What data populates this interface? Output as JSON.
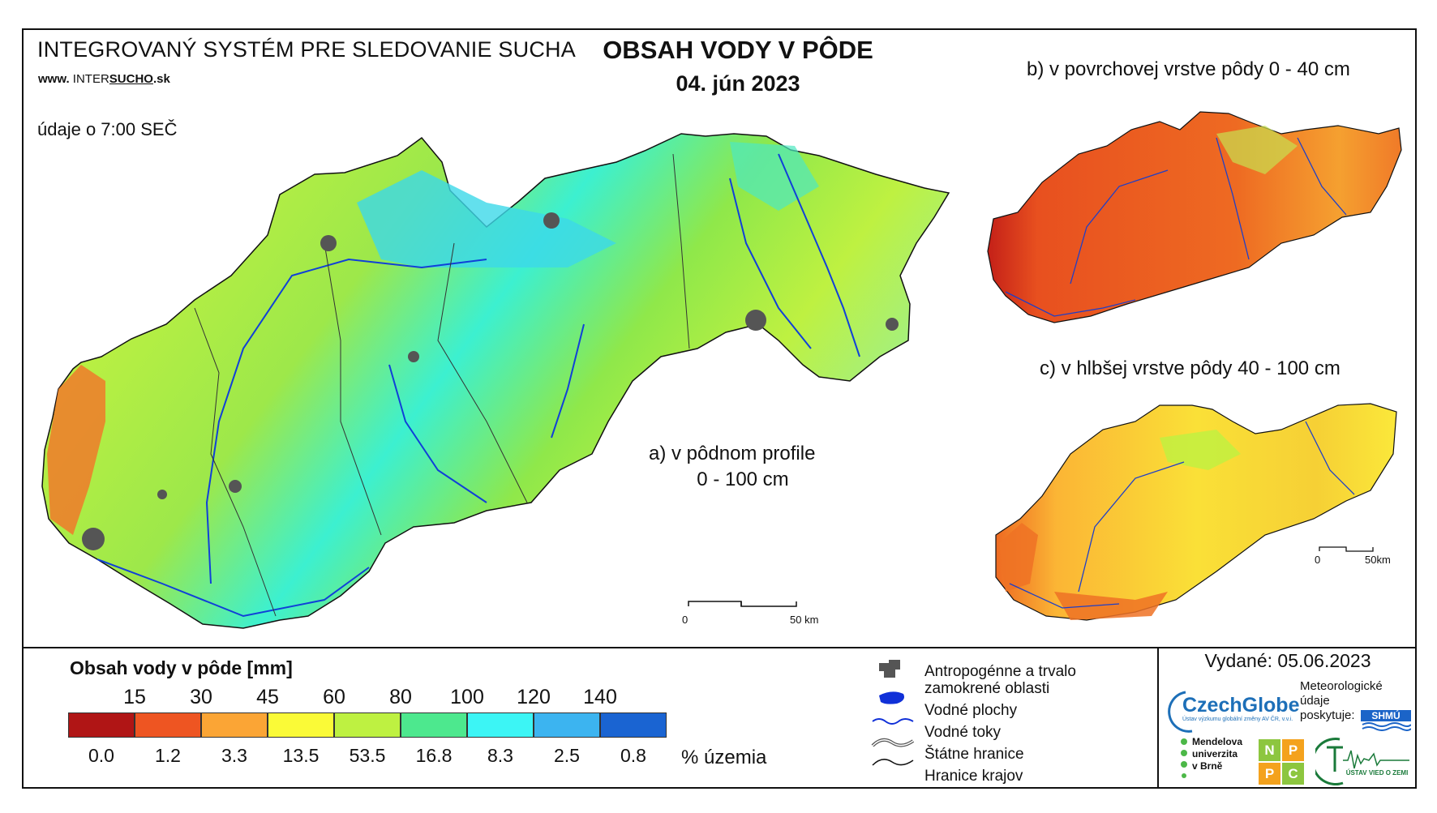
{
  "header": {
    "system_title": "INTEGROVANÝ SYSTÉM PRE SLEDOVANIE SUCHA",
    "www_prefix": "www.",
    "www_inter": "INTER",
    "www_sucho": "SUCHO",
    "www_suffix": ".sk",
    "data_time": "údaje o 7:00 SEČ",
    "title": "OBSAH VODY V PÔDE",
    "date": "04. jún 2023"
  },
  "maps": {
    "a_label_line1": "a) v pôdnom profile",
    "a_label_line2": "0 - 100 cm",
    "b_label": "b) v povrchovej vrstve pôdy 0 - 40 cm",
    "c_label": "c) v hlbšej vrstve pôdy 40 - 100 cm",
    "scale_a": {
      "zero": "0",
      "end": "50 km"
    },
    "scale_c": {
      "zero": "0",
      "end": "50km"
    }
  },
  "legend": {
    "title": "Obsah vody v pôde  [mm]",
    "thresholds": [
      "15",
      "30",
      "45",
      "60",
      "80",
      "100",
      "120",
      "140"
    ],
    "colors": [
      "#b01515",
      "#ee5522",
      "#fba535",
      "#fafa37",
      "#bef141",
      "#4de88e",
      "#3cf5f5",
      "#3cb4f0",
      "#1a64d2"
    ],
    "percent_area": [
      "0.0",
      "1.2",
      "3.3",
      "13.5",
      "53.5",
      "16.8",
      "8.3",
      "2.5",
      "0.8"
    ],
    "percent_unit": "% územia",
    "symbols": {
      "anthropogenic_line1": "Antropogénne a trvalo",
      "anthropogenic_line2": "zamokrené oblasti",
      "water_bodies": "Vodné plochy",
      "water_streams": "Vodné toky",
      "state_borders": "Štátne hranice",
      "region_borders": "Hranice krajov"
    }
  },
  "footer": {
    "issued": "Vydané: 05.06.2023",
    "czechglobe": "CzechGlobe",
    "czechglobe_sub": "Ústav výzkumu globální změny AV ČR, v.v.i.",
    "meteo_line1": "Meteorologické",
    "meteo_line2": "údaje",
    "meteo_line3": "poskytuje:",
    "shmu": "SHMÚ",
    "mendel_line1": "Mendelova",
    "mendel_line2": "univerzita",
    "mendel_line3": "v Brně",
    "nppc": [
      "N",
      "P",
      "P",
      "C"
    ],
    "uvz": "ÚSTAV VIED O ZEMI"
  }
}
